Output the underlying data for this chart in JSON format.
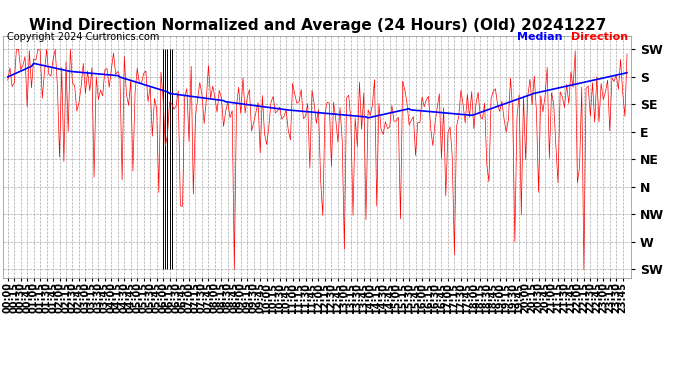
{
  "title": "Wind Direction Normalized and Average (24 Hours) (Old) 20241227",
  "copyright": "Copyright 2024 Curtronics.com",
  "legend_median": "Median",
  "legend_direction": "Direction",
  "ytick_labels": [
    "SW",
    "S",
    "SE",
    "E",
    "NE",
    "N",
    "NW",
    "W",
    "SW"
  ],
  "ytick_values": [
    8,
    7,
    6,
    5,
    4,
    3,
    2,
    1,
    0
  ],
  "ylim": [
    -0.3,
    8.5
  ],
  "bg_color": "#ffffff",
  "grid_color": "#aaaaaa",
  "red_color": "#ff0000",
  "blue_color": "#0000ff",
  "black_color": "#000000",
  "title_fontsize": 11,
  "copyright_fontsize": 7,
  "tick_fontsize": 7,
  "ylabel_fontsize": 9
}
